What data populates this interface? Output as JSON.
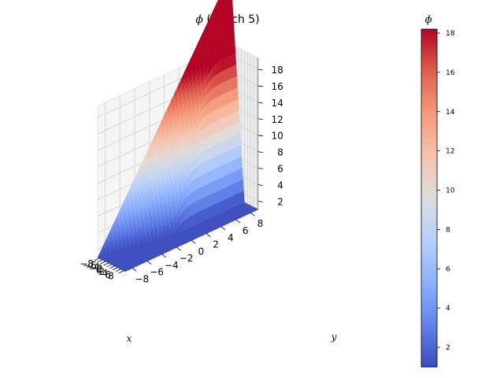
{
  "chart_data": {
    "type": "surface3d",
    "title_symbol": "ϕ",
    "title_suffix": " (Epoch 5)",
    "xlabel": "x",
    "ylabel": "y",
    "x_ticks": [
      -8,
      -6,
      -4,
      -2,
      0,
      2,
      4,
      6,
      8
    ],
    "y_ticks": [
      -8,
      -6,
      -4,
      -2,
      0,
      2,
      4,
      6,
      8
    ],
    "z_ticks": [
      2,
      4,
      6,
      8,
      10,
      12,
      14,
      16,
      18
    ],
    "x_range": [
      -9,
      9
    ],
    "y_range": [
      -9,
      9
    ],
    "z_range": [
      1,
      18.2
    ],
    "surface_description_points": [
      {
        "x": -9,
        "y": -9,
        "z": 18.1
      },
      {
        "x": -6,
        "y": -9,
        "z": 13.6
      },
      {
        "x": -3,
        "y": -9,
        "z": 9.0
      },
      {
        "x": 0,
        "y": -9,
        "z": 4.5
      },
      {
        "x": 3,
        "y": -9,
        "z": 1.0
      },
      {
        "x": 9,
        "y": -9,
        "z": 1.0
      },
      {
        "x": 9,
        "y": 9,
        "z": 1.0
      },
      {
        "x": -9,
        "y": 9,
        "z": 1.0
      },
      {
        "x": -9,
        "y": 0,
        "z": 4.5
      }
    ],
    "colormap": "coolwarm",
    "colorbar": {
      "label": "ϕ",
      "ticks": [
        2,
        4,
        6,
        8,
        10,
        12,
        14,
        16,
        18
      ],
      "min": 1.0,
      "max": 18.2
    },
    "grid": true
  }
}
